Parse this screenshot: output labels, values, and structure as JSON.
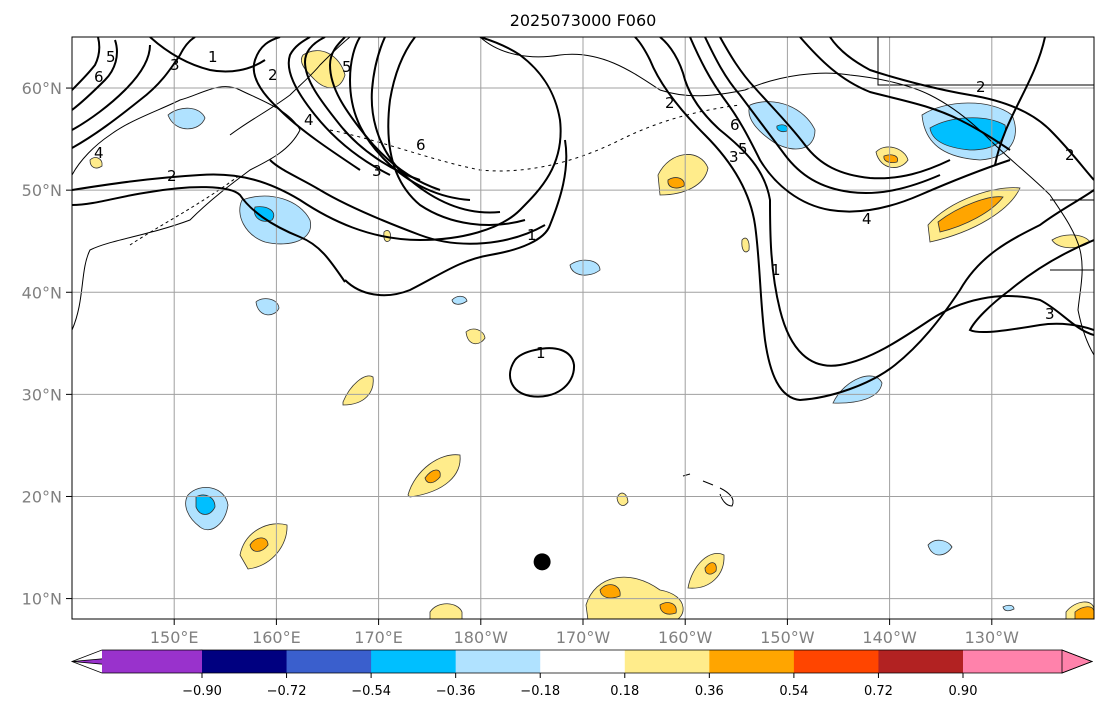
{
  "title": "2025073000 F060",
  "map": {
    "lon_range": [
      140,
      240
    ],
    "lat_range": [
      8,
      65
    ],
    "lat_ticks": [
      {
        "value": 10,
        "label": "10°N"
      },
      {
        "value": 20,
        "label": "20°N"
      },
      {
        "value": 30,
        "label": "30°N"
      },
      {
        "value": 40,
        "label": "40°N"
      },
      {
        "value": 50,
        "label": "50°N"
      },
      {
        "value": 60,
        "label": "60°N"
      }
    ],
    "lon_ticks": [
      {
        "value": 150,
        "label": "150°E"
      },
      {
        "value": 160,
        "label": "160°E"
      },
      {
        "value": 170,
        "label": "170°E"
      },
      {
        "value": 180,
        "label": "180°W"
      },
      {
        "value": 190,
        "label": "170°W"
      },
      {
        "value": 200,
        "label": "160°W"
      },
      {
        "value": 210,
        "label": "150°W"
      },
      {
        "value": 220,
        "label": "140°W"
      },
      {
        "value": 230,
        "label": "130°W"
      }
    ],
    "contour_labels": [
      "1",
      "2",
      "3",
      "4",
      "5",
      "6"
    ],
    "marker": {
      "name": "storm-center",
      "lon": 186,
      "lat": 13.6
    }
  },
  "colorbar": {
    "extend": "both",
    "tick_labels": [
      "−0.90",
      "−0.72",
      "−0.54",
      "−0.36",
      "−0.18",
      "0.18",
      "0.36",
      "0.54",
      "0.72",
      "0.90"
    ],
    "colors": {
      "under": "#9932cc",
      "bins": [
        "#000080",
        "#3a5fcd",
        "#00bfff",
        "#b0e2ff",
        "#ffffff",
        "#ffec8b",
        "#ffa500",
        "#ff4500",
        "#b22222"
      ],
      "over": "#ff82ab"
    }
  }
}
